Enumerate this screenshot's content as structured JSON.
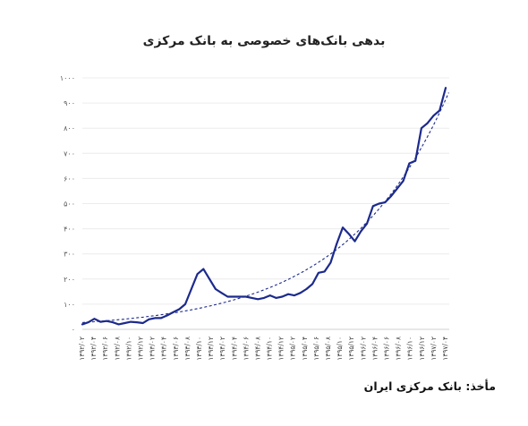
{
  "chart_data": {
    "type": "line",
    "title": "بدهی بانک‌های خصوصی به بانک مرکزی",
    "source": "مأخذ: بانک مرکزی ایران",
    "ylim": [
      0,
      1000
    ],
    "y_ticks": [
      "۰",
      "۱۰۰",
      "۲۰۰",
      "۳۰۰",
      "۴۰۰",
      "۵۰۰",
      "۶۰۰",
      "۷۰۰",
      "۸۰۰",
      "۹۰۰",
      "۱۰۰۰"
    ],
    "x_ticks": [
      "۱۳۹۲/۰۲",
      "۱۳۹۲/۰۴",
      "۱۳۹۲/۰۶",
      "۱۳۹۲/۰۸",
      "۱۳۹۲/۱۰",
      "۱۳۹۲/۱۲",
      "۱۳۹۳/۰۲",
      "۱۳۹۳/۰۴",
      "۱۳۹۳/۰۶",
      "۱۳۹۳/۰۸",
      "۱۳۹۳/۱۰",
      "۱۳۹۳/۱۲",
      "۱۳۹۴/۰۲",
      "۱۳۹۴/۰۴",
      "۱۳۹۴/۰۶",
      "۱۳۹۴/۰۸",
      "۱۳۹۴/۱۰",
      "۱۳۹۴/۱۲",
      "۱۳۹۵/۰۲",
      "۱۳۹۵/۰۴",
      "۱۳۹۵/۰۶",
      "۱۳۹۵/۰۸",
      "۱۳۹۵/۱۰",
      "۱۳۹۵/۱۲",
      "۱۳۹۶/۰۲",
      "۱۳۹۶/۰۴",
      "۱۳۹۶/۰۶",
      "۱۳۹۶/۰۸",
      "۱۳۹۶/۱۰",
      "۱۳۹۶/۱۲",
      "۱۳۹۷/۰۲",
      "۱۳۹۷/۰۴"
    ],
    "series": [
      {
        "values": [
          20,
          28,
          42,
          30,
          33,
          28,
          20,
          25,
          30,
          28,
          25,
          40,
          45,
          45,
          55,
          68,
          80,
          100,
          160,
          220,
          240,
          200,
          160,
          145,
          130,
          130,
          130,
          130,
          125,
          120,
          125,
          135,
          125,
          130,
          140,
          135,
          145,
          160,
          180,
          225,
          230,
          265,
          340,
          405,
          380,
          350,
          390,
          420,
          490,
          500,
          505,
          530,
          560,
          590,
          660,
          670,
          800,
          820,
          850,
          870,
          960
        ],
        "color": "#1c2a8c"
      }
    ],
    "trend": {
      "a": 27,
      "b": 0.0587,
      "color": "#1c2a8c",
      "style": "dashed"
    },
    "grid": true
  }
}
